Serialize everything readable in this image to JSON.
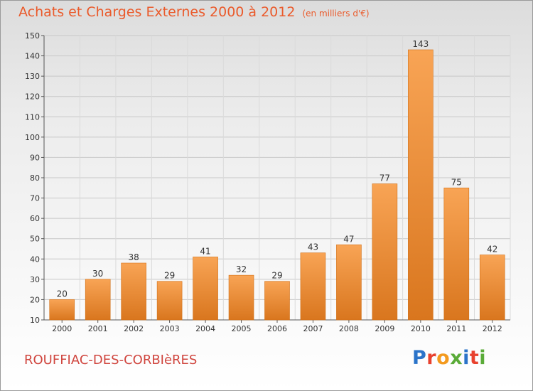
{
  "header": {
    "title": "Achats et Charges Externes 2000 à 2012",
    "unit": "(en milliers d'€)"
  },
  "footer": {
    "city": "ROUFFIAC-DES-CORBIèRES",
    "logo": "Proxiti",
    "logo_colors": [
      "#2a73c9",
      "#e8412e",
      "#f39a1e",
      "#5aab38",
      "#2a73c9",
      "#e8412e",
      "#5aab38"
    ]
  },
  "chart_data": {
    "type": "bar",
    "categories": [
      "2000",
      "2001",
      "2002",
      "2003",
      "2004",
      "2005",
      "2006",
      "2007",
      "2008",
      "2009",
      "2010",
      "2011",
      "2012"
    ],
    "values": [
      20,
      30,
      38,
      29,
      41,
      32,
      29,
      43,
      47,
      77,
      143,
      75,
      42
    ],
    "ylim": [
      10,
      150
    ],
    "yticks": [
      10,
      20,
      30,
      40,
      50,
      60,
      70,
      80,
      90,
      100,
      110,
      120,
      130,
      140,
      150
    ],
    "grid": true,
    "bar_color": "#f0902e"
  }
}
